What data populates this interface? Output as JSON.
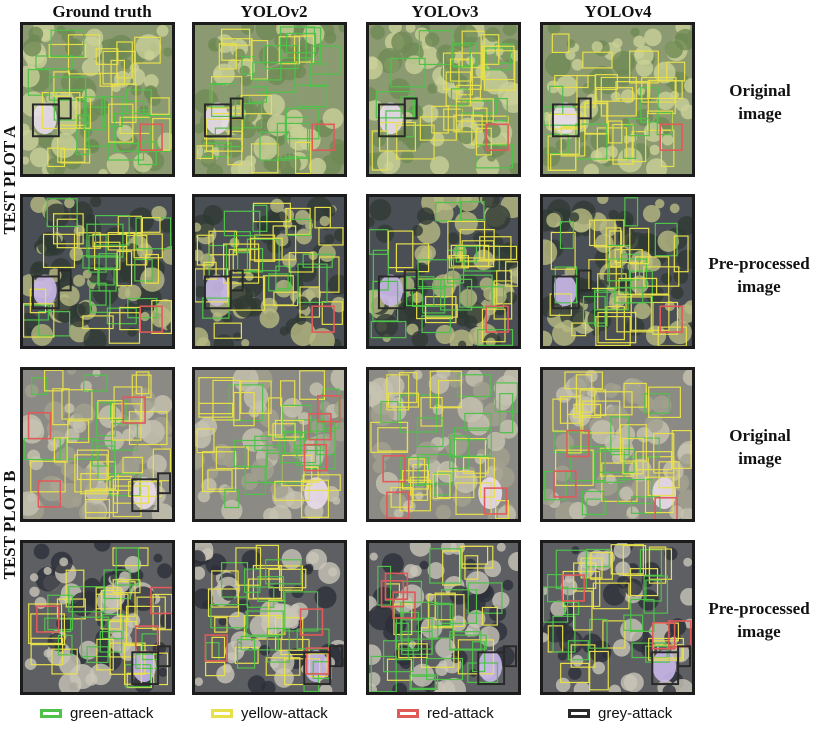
{
  "columns": [
    "Ground truth",
    "YOLOv2",
    "YOLOv3",
    "YOLOv4"
  ],
  "plots": [
    {
      "label": "TEST  PLOT  A",
      "rows": [
        {
          "label_line1": "Original",
          "label_line2": "image",
          "variant": "original",
          "seed_base": 11
        },
        {
          "label_line1": "Pre-processed",
          "label_line2": "image",
          "variant": "processed",
          "seed_base": 31
        }
      ]
    },
    {
      "label": "TEST  PLOT  B",
      "rows": [
        {
          "label_line1": "Original",
          "label_line2": "image",
          "variant": "original",
          "seed_base": 51
        },
        {
          "label_line1": "Pre-processed",
          "label_line2": "image",
          "variant": "processed",
          "seed_base": 71
        }
      ]
    }
  ],
  "legend": [
    {
      "label": "green-attack",
      "color": "#4fc24a"
    },
    {
      "label": "yellow-attack",
      "color": "#e8e04a"
    },
    {
      "label": "red-attack",
      "color": "#e05a5a"
    },
    {
      "label": "grey-attack",
      "color": "#2a2a2a"
    }
  ]
}
